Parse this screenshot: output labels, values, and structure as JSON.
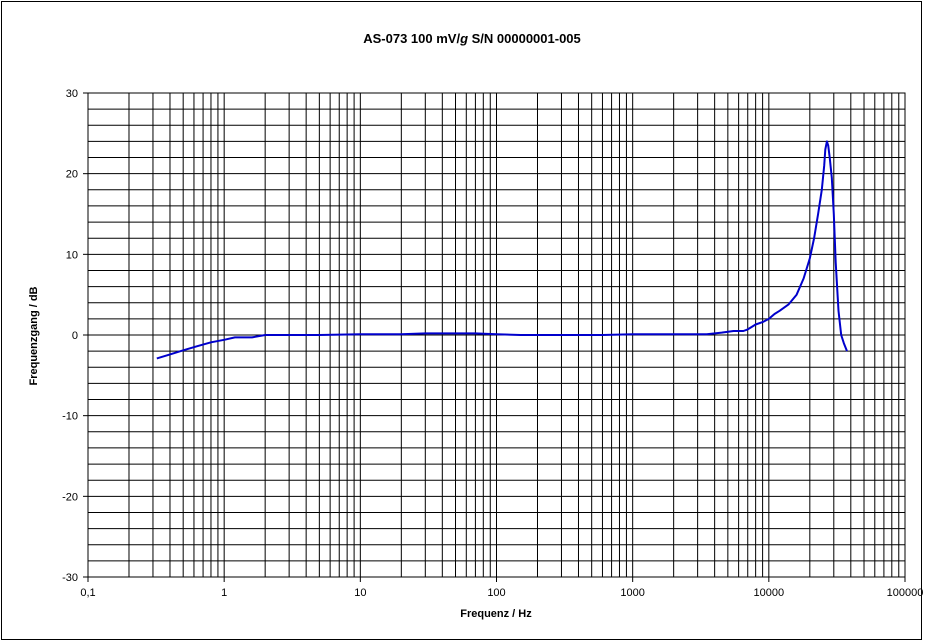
{
  "chart_data": {
    "type": "line",
    "title": {
      "part1": "AS-073  100 mV/",
      "italic": "g",
      "part2": "  S/N 00000001-005"
    },
    "xlabel": "Frequenz / Hz",
    "ylabel": "Frequenzgang / dB",
    "x_scale": "log",
    "xlim": [
      0.1,
      100000
    ],
    "ylim": [
      -30,
      30
    ],
    "y_major_step": 10,
    "y_minor_step": 2,
    "grid": true,
    "x_tick_labels": [
      "0,1",
      "1",
      "10",
      "100",
      "1000",
      "10000",
      "100000"
    ],
    "y_tick_labels": [
      "-30",
      "-20",
      "-10",
      "0",
      "10",
      "20",
      "30"
    ],
    "line_color": "#0000cc",
    "series": [
      {
        "x": [
          0.32,
          0.4,
          0.5,
          0.63,
          0.8,
          1.0,
          1.2,
          1.6,
          2.0,
          3,
          5,
          10,
          20,
          30,
          50,
          70,
          100,
          150,
          300,
          600,
          1000,
          2000,
          3500,
          4500,
          5500,
          6500,
          7000,
          7500,
          8000,
          9000,
          10000,
          11000,
          12000,
          14000,
          16000,
          18000,
          20000,
          21500,
          23000,
          24500,
          25500,
          26000,
          26700,
          27300,
          28000,
          29000,
          30000,
          31000,
          32500,
          34000,
          35500,
          37500
        ],
        "y": [
          -2.9,
          -2.4,
          -1.9,
          -1.4,
          -0.9,
          -0.6,
          -0.3,
          -0.3,
          0.0,
          0.0,
          0.0,
          0.1,
          0.1,
          0.2,
          0.2,
          0.2,
          0.1,
          0.0,
          0.0,
          0.0,
          0.1,
          0.1,
          0.1,
          0.3,
          0.5,
          0.5,
          0.7,
          1.0,
          1.3,
          1.6,
          2.0,
          2.6,
          3.0,
          3.8,
          5.0,
          7.0,
          9.5,
          12.0,
          15.0,
          18.0,
          21.0,
          23.0,
          24.0,
          23.5,
          22.0,
          19.5,
          15.0,
          9.0,
          3.0,
          0.0,
          -1.0,
          -2.0
        ]
      }
    ]
  }
}
